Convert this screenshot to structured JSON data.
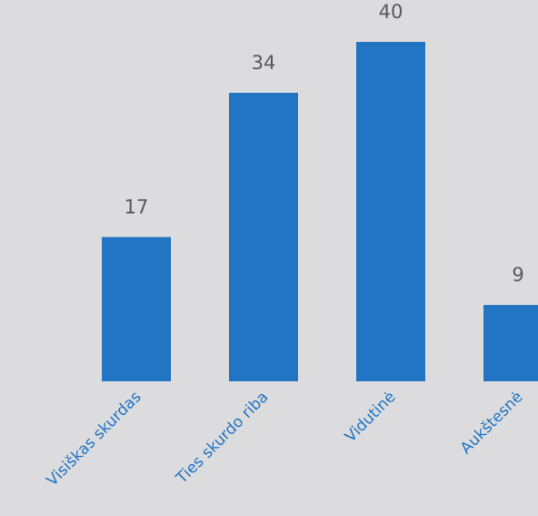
{
  "chart_data": {
    "type": "bar",
    "categories": [
      "Visiškas skurdas",
      "Ties skurdo riba",
      "Vidutinė",
      "Aukštesnė"
    ],
    "values": [
      17,
      34,
      40,
      9
    ],
    "title": "",
    "xlabel": "",
    "ylabel": "",
    "ylim": [
      0,
      40
    ],
    "grid": false,
    "legend": "none",
    "colors": {
      "bar": "#2275c3",
      "category_label": "#2275c3",
      "value_label": "#595959",
      "background": "#dcdcde"
    }
  }
}
